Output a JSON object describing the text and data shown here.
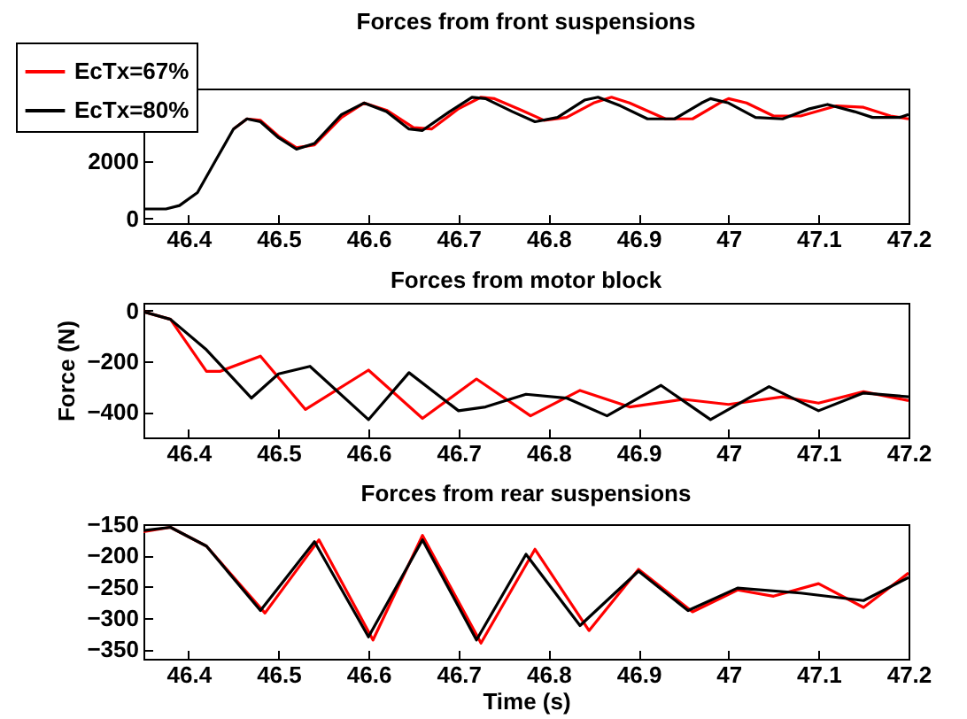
{
  "chart_data": [
    {
      "type": "line",
      "title": "Forces from front suspensions",
      "xlim": [
        46.35,
        47.2
      ],
      "xticks": [
        46.4,
        46.5,
        46.6,
        46.7,
        46.8,
        46.9,
        47,
        47.1,
        47.2
      ],
      "ylim": [
        -160,
        4500
      ],
      "yticks": [
        0,
        2000,
        {
          "value": 4000,
          "label": null
        }
      ],
      "legend": "top left",
      "grid": false,
      "series": [
        {
          "name": "EcTx=67%",
          "color": "#ff0000",
          "x": [
            46.45,
            46.465,
            46.48,
            46.5,
            46.52,
            46.54,
            46.57,
            46.595,
            46.62,
            46.65,
            46.67,
            46.7,
            46.725,
            46.74,
            46.77,
            46.795,
            46.82,
            46.85,
            46.87,
            46.89,
            46.93,
            46.96,
            46.99,
            47.0,
            47.02,
            47.05,
            47.08,
            47.12,
            47.15,
            47.18,
            47.2
          ],
          "values": [
            3100,
            3450,
            3400,
            2850,
            2450,
            2550,
            3500,
            4000,
            3750,
            3150,
            3100,
            3800,
            4200,
            4150,
            3750,
            3400,
            3500,
            4000,
            4200,
            4000,
            3450,
            3450,
            4000,
            4150,
            4000,
            3550,
            3550,
            3900,
            3850,
            3550,
            3450
          ]
        },
        {
          "name": "EcTx=80%",
          "color": "#000000",
          "x": [
            46.35,
            46.375,
            46.39,
            46.41,
            46.43,
            46.45,
            46.465,
            46.48,
            46.5,
            46.52,
            46.54,
            46.57,
            46.595,
            46.62,
            46.645,
            46.66,
            46.69,
            46.715,
            46.73,
            46.76,
            46.785,
            46.81,
            46.84,
            46.855,
            46.88,
            46.91,
            46.94,
            46.97,
            46.98,
            47.0,
            47.03,
            47.06,
            47.09,
            47.11,
            47.14,
            47.16,
            47.19,
            47.2
          ],
          "values": [
            330,
            330,
            450,
            900,
            2000,
            3100,
            3450,
            3350,
            2800,
            2400,
            2600,
            3600,
            4000,
            3700,
            3100,
            3050,
            3700,
            4200,
            4150,
            3700,
            3350,
            3500,
            4100,
            4200,
            3900,
            3450,
            3450,
            4000,
            4150,
            4000,
            3500,
            3450,
            3800,
            3950,
            3700,
            3500,
            3500,
            3600
          ]
        }
      ]
    },
    {
      "type": "line",
      "title": "Forces from motor block",
      "ylabel": "Force (N)",
      "xlim": [
        46.35,
        47.2
      ],
      "xticks": [
        46.4,
        46.5,
        46.6,
        46.7,
        46.8,
        46.9,
        47,
        47.1,
        47.2
      ],
      "ylim": [
        -500,
        30
      ],
      "yticks": [
        0,
        -200,
        -400
      ],
      "grid": false,
      "series": [
        {
          "color": "#ff0000",
          "x": [
            46.35,
            46.38,
            46.42,
            46.435,
            46.48,
            46.53,
            46.6,
            46.66,
            46.72,
            46.78,
            46.835,
            46.89,
            46.95,
            47.0,
            47.06,
            47.1,
            47.15,
            47.2
          ],
          "values": [
            -5,
            -35,
            -240,
            -240,
            -180,
            -390,
            -235,
            -425,
            -270,
            -415,
            -315,
            -380,
            -350,
            -370,
            -340,
            -365,
            -320,
            -355
          ]
        },
        {
          "color": "#000000",
          "x": [
            46.35,
            46.38,
            46.42,
            46.47,
            46.5,
            46.535,
            46.6,
            46.645,
            46.7,
            46.73,
            46.775,
            46.82,
            46.865,
            46.925,
            46.98,
            47.045,
            47.1,
            47.15,
            47.2
          ],
          "values": [
            -5,
            -35,
            -155,
            -345,
            -250,
            -220,
            -430,
            -245,
            -395,
            -380,
            -330,
            -345,
            -415,
            -295,
            -430,
            -300,
            -395,
            -325,
            -340
          ]
        }
      ]
    },
    {
      "type": "line",
      "title": "Forces from rear suspensions",
      "xlabel": "Time (s)",
      "xlim": [
        46.35,
        47.2
      ],
      "xticks": [
        46.4,
        46.5,
        46.6,
        46.7,
        46.8,
        46.9,
        47,
        47.1,
        47.2
      ],
      "ylim": [
        -365,
        -150
      ],
      "yticks": [
        -150,
        -200,
        -250,
        -300,
        -350
      ],
      "grid": false,
      "series": [
        {
          "color": "#ff0000",
          "x": [
            46.35,
            46.38,
            46.42,
            46.485,
            46.545,
            46.605,
            46.66,
            46.725,
            46.785,
            46.845,
            46.9,
            46.96,
            47.01,
            47.05,
            47.1,
            47.15,
            47.2
          ],
          "values": [
            -162,
            -155,
            -185,
            -292,
            -175,
            -335,
            -168,
            -340,
            -190,
            -320,
            -222,
            -290,
            -255,
            -265,
            -245,
            -283,
            -228
          ]
        },
        {
          "color": "#000000",
          "x": [
            46.35,
            46.38,
            46.42,
            46.48,
            46.54,
            46.6,
            46.66,
            46.72,
            46.775,
            46.835,
            46.9,
            46.955,
            47.01,
            47.08,
            47.15,
            47.2
          ],
          "values": [
            -160,
            -155,
            -185,
            -288,
            -178,
            -330,
            -175,
            -335,
            -198,
            -312,
            -225,
            -288,
            -252,
            -260,
            -272,
            -235
          ]
        }
      ]
    }
  ]
}
